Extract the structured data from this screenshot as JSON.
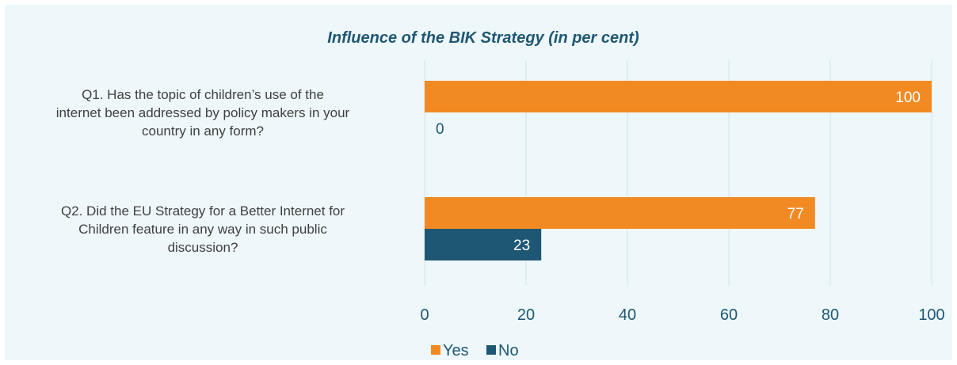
{
  "chart_data": {
    "type": "bar",
    "orientation": "horizontal",
    "title": "Influence of the BIK Strategy (in per cent)",
    "categories": [
      [
        "Q1. Has the topic of children’s use of the",
        "internet been addressed by policy makers in your",
        "country in any form?"
      ],
      [
        "Q2. Did the EU Strategy for a Better Internet for",
        "Children feature in any way in such public",
        "discussion?"
      ]
    ],
    "series": [
      {
        "name": "Yes",
        "color": "#f28a24",
        "values": [
          100,
          77
        ]
      },
      {
        "name": "No",
        "color": "#1e5773",
        "values": [
          0,
          23
        ]
      }
    ],
    "xlim": [
      0,
      100
    ],
    "x_ticks": [
      0,
      20,
      40,
      60,
      80,
      100
    ],
    "xlabel": "",
    "ylabel": "",
    "grid": true,
    "legend": "bottom-center",
    "colors": {
      "background": "#eef7fa",
      "title": "#1e5773",
      "gridline": "#d4e3ea",
      "axis_text": "#1e5773",
      "label_on_bar": "#ffffff",
      "label_outside": "#1e5773"
    }
  }
}
